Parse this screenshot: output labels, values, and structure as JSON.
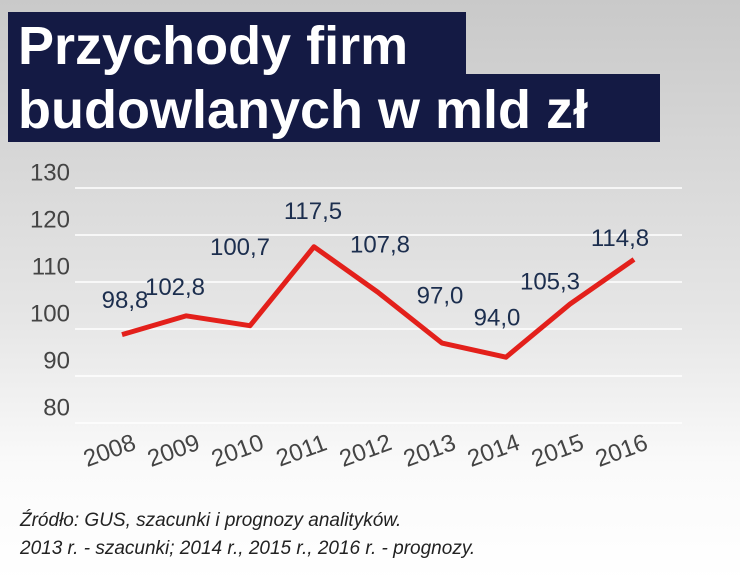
{
  "chart_data": {
    "type": "line",
    "title_lines": [
      "Przychody firm",
      "budowlanych w mld zł"
    ],
    "categories": [
      "2008",
      "2009",
      "2010",
      "2011",
      "2012",
      "2013",
      "2014",
      "2015",
      "2016"
    ],
    "values": [
      98.8,
      102.8,
      100.7,
      117.5,
      107.8,
      97.0,
      94.0,
      105.3,
      114.8
    ],
    "value_labels": [
      "98,8",
      "102,8",
      "100,7",
      "117,5",
      "107,8",
      "97,0",
      "94,0",
      "105,3",
      "114,8"
    ],
    "color": "#e3201b",
    "ylim": [
      80,
      130
    ],
    "yticks": [
      80,
      90,
      100,
      110,
      120,
      130
    ],
    "grid": true,
    "notes": [
      "Źródło: GUS, szacunki i prognozy analityków.",
      "2013 r. - szacunki; 2014 r., 2015 r., 2016 r. - prognozy."
    ]
  }
}
